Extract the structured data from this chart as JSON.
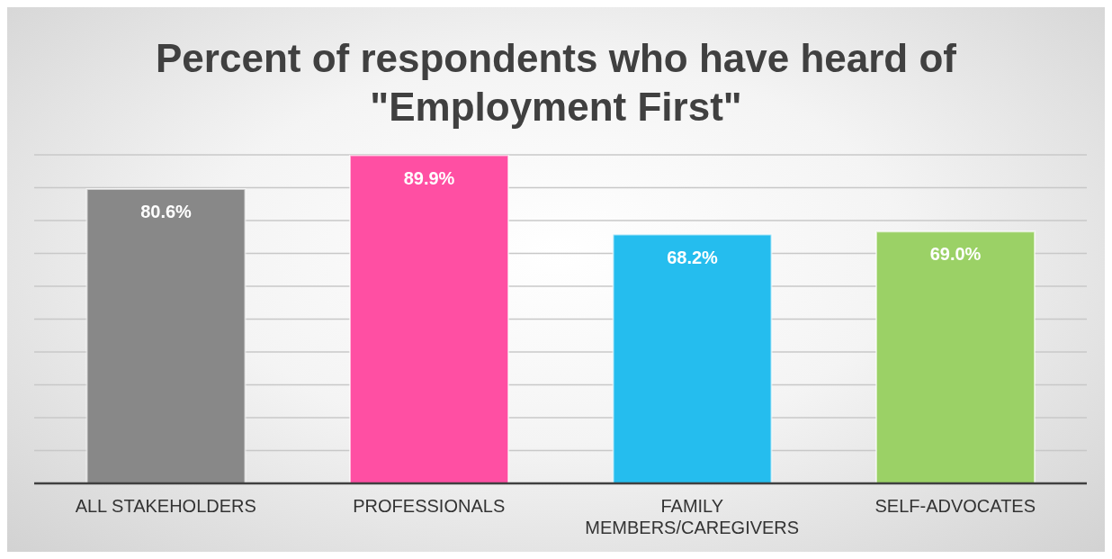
{
  "chart_data": {
    "type": "bar",
    "title": "Percent of respondents who have heard of \"Employment First\"",
    "categories": [
      "ALL STAKEHOLDERS",
      "PROFESSIONALS",
      "FAMILY MEMBERS/CAREGIVERS",
      "SELF-ADVOCATES"
    ],
    "values": [
      80.6,
      89.9,
      68.2,
      69.0
    ],
    "colors": [
      "#888888",
      "#ff4fa3",
      "#25bdee",
      "#9bd166"
    ],
    "value_labels": [
      "80.6%",
      "89.9%",
      "68.2%",
      "69.0%"
    ],
    "tick_labels": "x",
    "grid": "y"
  }
}
